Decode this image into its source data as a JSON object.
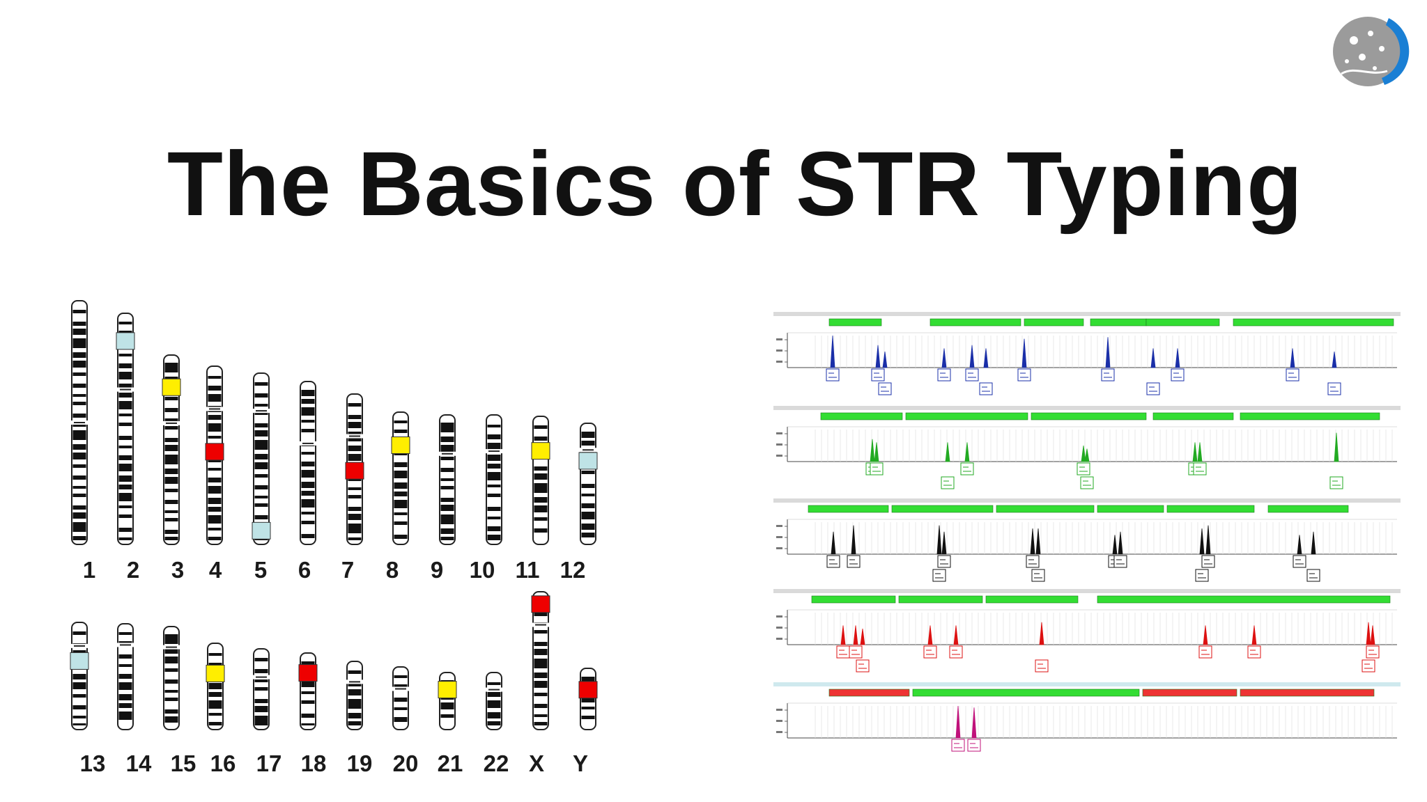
{
  "slide": {
    "title": "The Basics of STR Typing"
  },
  "colors": {
    "chromosome_band": "#111111",
    "marker_yellow": "#ffee00",
    "marker_red": "#ee0000",
    "marker_lightblue": "#bfe3e6",
    "locus_bar_green": "#33dd33",
    "locus_bar_red": "#ee3333",
    "dye_blue": "#1a2fa8",
    "dye_green": "#22aa22",
    "dye_black": "#111111",
    "dye_red": "#dd1111",
    "dye_magenta": "#c0107a"
  },
  "karyogram": {
    "row1": [
      "1",
      "2",
      "3",
      "4",
      "5",
      "6",
      "7",
      "8",
      "9",
      "10",
      "11",
      "12"
    ],
    "row2": [
      "13",
      "14",
      "15",
      "16",
      "17",
      "18",
      "19",
      "20",
      "21",
      "22",
      "X",
      "Y"
    ]
  }
}
